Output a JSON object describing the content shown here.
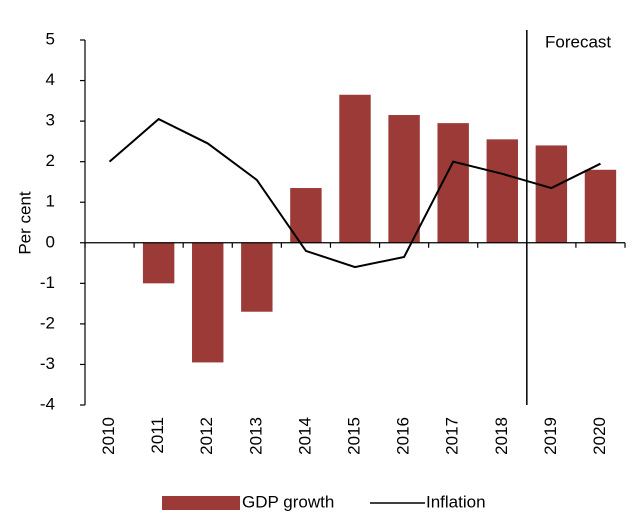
{
  "chart_data": {
    "type": "bar",
    "y_label": "Per cent",
    "annotation": "Forecast",
    "categories": [
      "2010",
      "2011",
      "2012",
      "2013",
      "2014",
      "2015",
      "2016",
      "2017",
      "2018",
      "2019",
      "2020"
    ],
    "series": [
      {
        "name": "GDP growth",
        "type": "bar",
        "color": "#9b3a37",
        "values": [
          null,
          -1.0,
          -2.95,
          -1.7,
          1.35,
          3.65,
          3.15,
          2.95,
          2.55,
          2.4,
          1.8
        ]
      },
      {
        "name": "Inflation",
        "type": "line",
        "color": "#000000",
        "values": [
          2.0,
          3.05,
          2.45,
          1.55,
          -0.2,
          -0.6,
          -0.35,
          2.0,
          1.7,
          1.35,
          1.95
        ]
      }
    ],
    "ylim": [
      -4,
      5
    ],
    "yticks": [
      -4,
      -3,
      -2,
      -1,
      0,
      1,
      2,
      3,
      4,
      5
    ],
    "grid": false,
    "legend": "bottom"
  }
}
